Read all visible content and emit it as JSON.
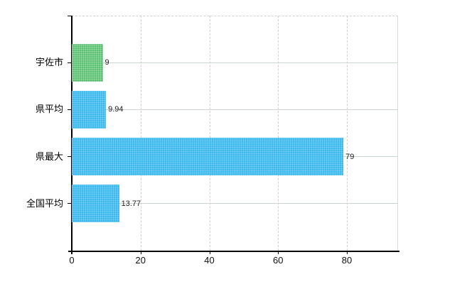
{
  "chart_data": {
    "type": "bar",
    "orientation": "horizontal",
    "title": "",
    "xlabel": "",
    "ylabel": "",
    "categories": [
      "宇佐市",
      "県平均",
      "県最大",
      "全国平均"
    ],
    "values": [
      9,
      9.94,
      79,
      13.77
    ],
    "value_labels": [
      "9",
      "9.94",
      "79",
      "13.77"
    ],
    "bar_colors": [
      "green",
      "blue",
      "blue",
      "blue"
    ],
    "x_ticks": [
      0,
      20,
      40,
      60,
      80
    ],
    "x_tick_labels": [
      "0",
      "20",
      "40",
      "60",
      "80"
    ],
    "xlim": [
      0,
      95
    ],
    "grid": true,
    "legend_position": "none"
  },
  "colors": {
    "bar_green": "#63c878",
    "bar_blue": "#40bff2",
    "gridline_vertical": "#d6cdd4",
    "gridline_horizontal": "#ccd6cc",
    "axis": "#000000",
    "background": "#ffffff"
  }
}
